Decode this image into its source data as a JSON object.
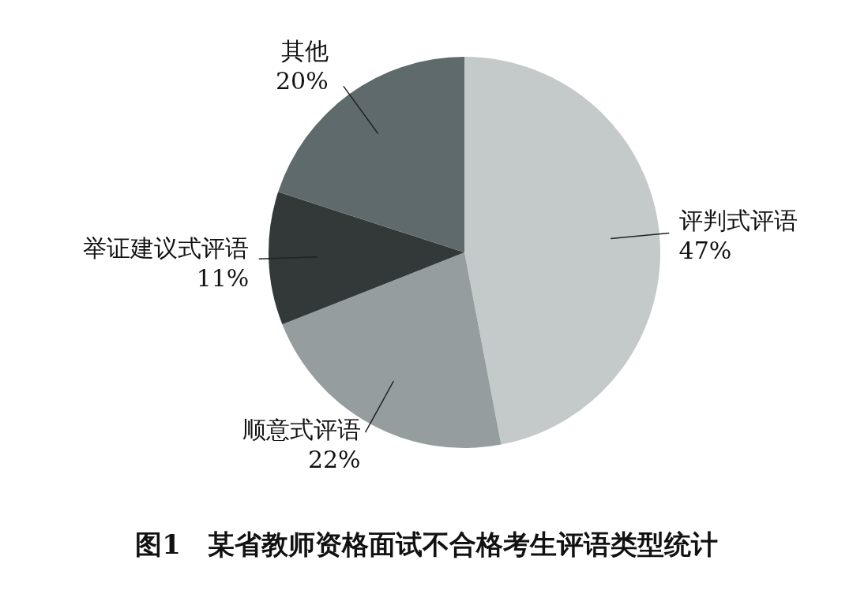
{
  "chart_data": {
    "type": "pie",
    "title": "图1　某省教师资格面试不合格考生评语类型统计",
    "categories": [
      "评判式评语",
      "顺意式评语",
      "举证建议式评语",
      "其他"
    ],
    "values": [
      47,
      22,
      11,
      20
    ],
    "colors": [
      "#c4c9c9",
      "#959d9f",
      "#333838",
      "#5f6a6d"
    ],
    "value_labels": [
      "47%",
      "22%",
      "11%",
      "20%"
    ]
  }
}
